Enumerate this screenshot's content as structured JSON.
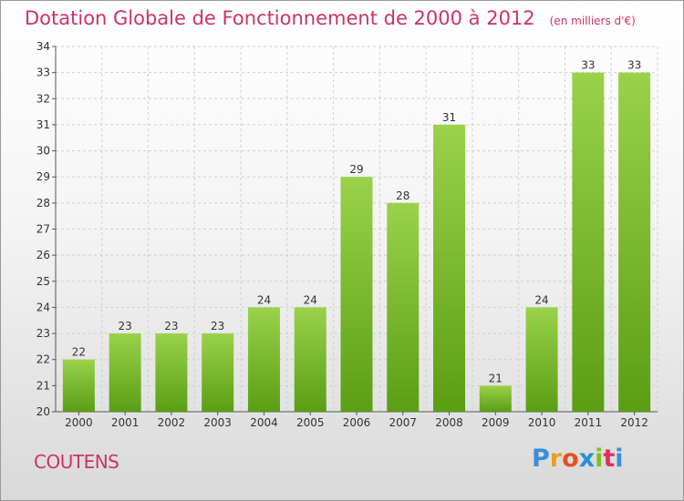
{
  "title": "Dotation Globale de Fonctionnement de 2000 à 2012",
  "unit": "(en milliers d'€)",
  "town": "COUTENS",
  "logo": {
    "letters": [
      "P",
      "r",
      "o",
      "x",
      "i",
      "t",
      "i"
    ],
    "colors": [
      "#3a8fd6",
      "#e8a020",
      "#e85020",
      "#2a8fd6",
      "#7cc020",
      "#e03060",
      "#3a8fd6"
    ]
  },
  "colors": {
    "bar": "#7cc431",
    "bar_dark": "#5a9e14",
    "text": "#cc3366"
  },
  "chart_data": {
    "type": "bar",
    "categories": [
      "2000",
      "2001",
      "2002",
      "2003",
      "2004",
      "2005",
      "2006",
      "2007",
      "2008",
      "2009",
      "2010",
      "2011",
      "2012"
    ],
    "values": [
      22,
      23,
      23,
      23,
      24,
      24,
      29,
      28,
      31,
      21,
      24,
      33,
      33
    ],
    "data_labels": [
      "22",
      "23",
      "23",
      "23",
      "24",
      "24",
      "29",
      "28",
      "31",
      "21",
      "24",
      "33",
      "33"
    ],
    "ylim": [
      20,
      34
    ],
    "yticks": [
      "20",
      "21",
      "22",
      "23",
      "24",
      "25",
      "26",
      "27",
      "28",
      "29",
      "30",
      "31",
      "32",
      "33",
      "34"
    ],
    "grid": true
  }
}
